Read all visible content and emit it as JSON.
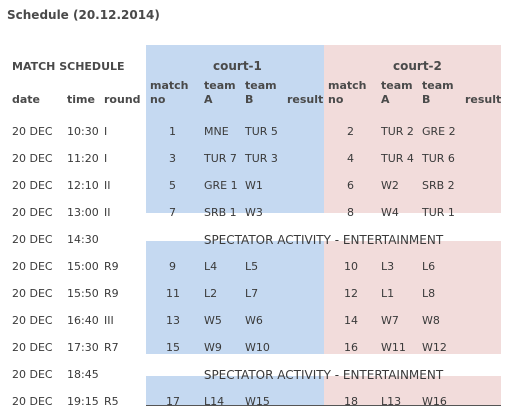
{
  "title": "Schedule (20.12.2014)",
  "header": {
    "section": "MATCH SCHEDULE",
    "court1": "court-1",
    "court2": "court-2",
    "date": "date",
    "time": "time",
    "round": "round",
    "match_top": "match",
    "match_bottom": "no",
    "team_top": "team",
    "team_a": "A",
    "team_b": "B",
    "result": "result"
  },
  "rows": [
    {
      "date": "20 DEC",
      "time": "10:30",
      "round": "I",
      "m1": "1",
      "a1": "MNE",
      "b1": "TUR 5",
      "m2": "2",
      "a2": "TUR 2",
      "b2": "GRE 2"
    },
    {
      "date": "20 DEC",
      "time": "11:20",
      "round": "I",
      "m1": "3",
      "a1": "TUR 7",
      "b1": "TUR 3",
      "m2": "4",
      "a2": "TUR 4",
      "b2": "TUR 6"
    },
    {
      "date": "20 DEC",
      "time": "12:10",
      "round": "II",
      "m1": "5",
      "a1": "GRE 1",
      "b1": "W1",
      "m2": "6",
      "a2": "W2",
      "b2": "SRB 2"
    },
    {
      "date": "20 DEC",
      "time": "13:00",
      "round": "II",
      "m1": "7",
      "a1": "SRB 1",
      "b1": "W3",
      "m2": "8",
      "a2": "W4",
      "b2": "TUR 1"
    },
    {
      "date": "20 DEC",
      "time": "14:30",
      "spectator": "SPECTATOR ACTIVITY - ENTERTAINMENT"
    },
    {
      "date": "20 DEC",
      "time": "15:00",
      "round": "R9",
      "m1": "9",
      "a1": "L4",
      "b1": "L5",
      "m2": "10",
      "a2": "L3",
      "b2": "L6"
    },
    {
      "date": "20 DEC",
      "time": "15:50",
      "round": "R9",
      "m1": "11",
      "a1": "L2",
      "b1": "L7",
      "m2": "12",
      "a2": "L1",
      "b2": "L8"
    },
    {
      "date": "20 DEC",
      "time": "16:40",
      "round": "III",
      "m1": "13",
      "a1": "W5",
      "b1": "W6",
      "m2": "14",
      "a2": "W7",
      "b2": "W8"
    },
    {
      "date": "20 DEC",
      "time": "17:30",
      "round": "R7",
      "m1": "15",
      "a1": "W9",
      "b1": "W10",
      "m2": "16",
      "a2": "W11",
      "b2": "W12"
    },
    {
      "date": "20 DEC",
      "time": "18:45",
      "spectator": "SPECTATOR ACTIVITY - ENTERTAINMENT"
    },
    {
      "date": "20 DEC",
      "time": "19:15",
      "round": "R5",
      "m1": "17",
      "a1": "L14",
      "b1": "W15",
      "m2": "18",
      "a2": "L13",
      "b2": "W16"
    }
  ]
}
